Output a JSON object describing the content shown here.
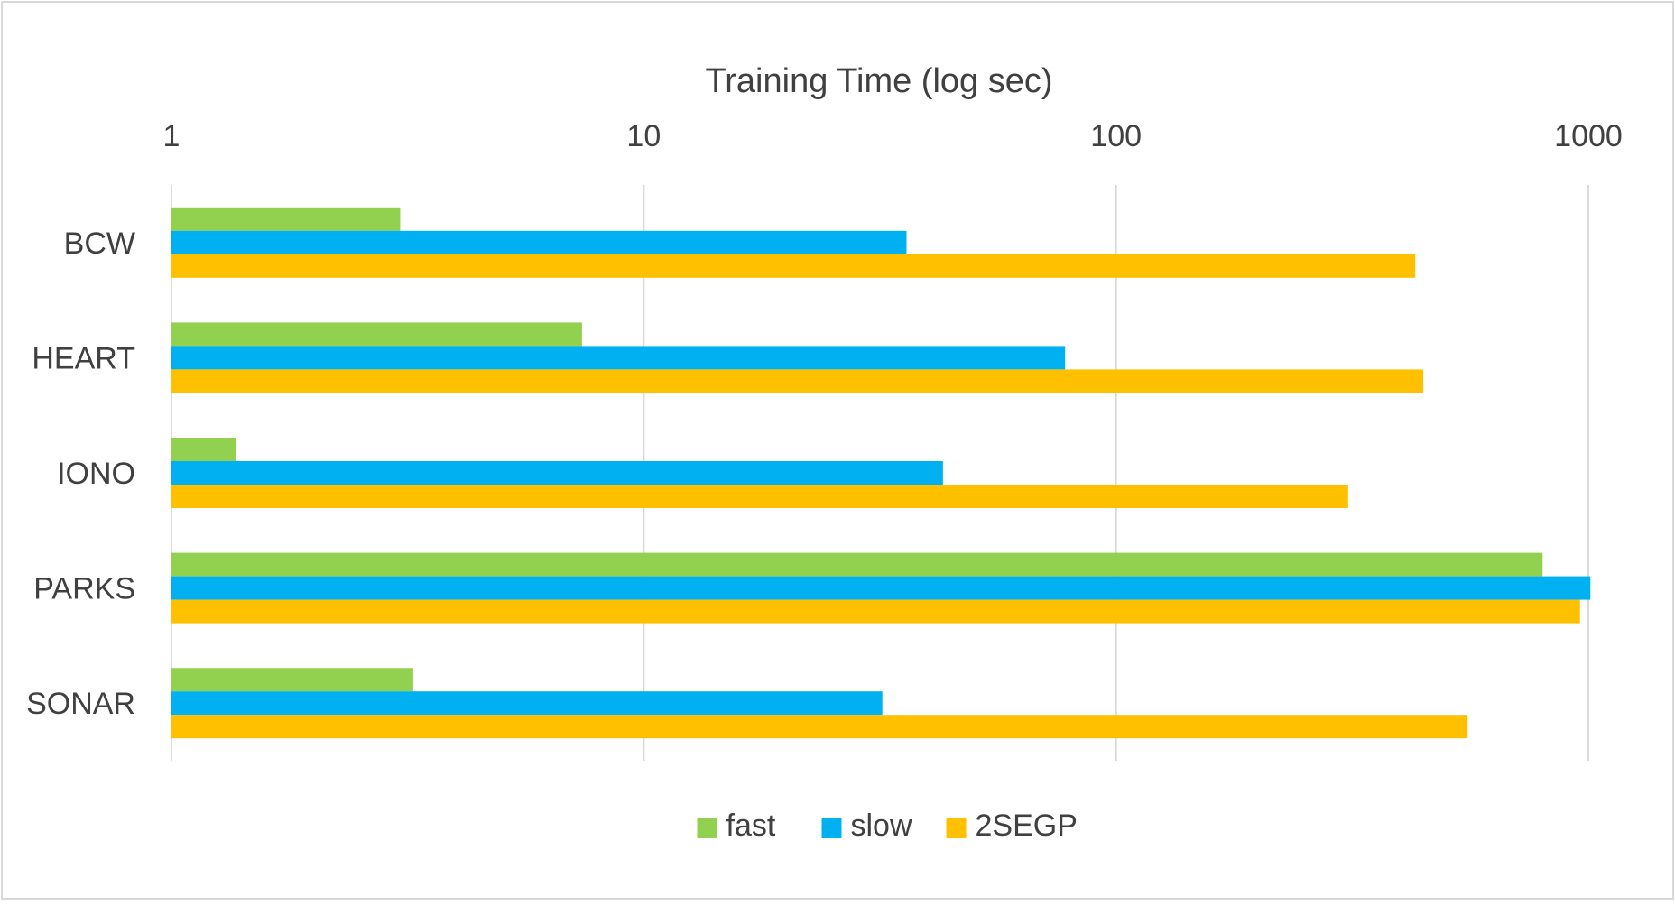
{
  "chart_data": {
    "type": "bar",
    "orientation": "horizontal",
    "title": "Training Time (log sec)",
    "xlabel": "Training Time (log sec)",
    "ylabel": "",
    "xscale": "log",
    "xlim": [
      1,
      1000
    ],
    "x_ticks": [
      1,
      10,
      100,
      1000
    ],
    "x_tick_labels": [
      "1",
      "10",
      "100",
      "1000"
    ],
    "x_axis_position": "top",
    "grid": true,
    "legend_position": "bottom",
    "categories": [
      "BCW",
      "HEART",
      "IONO",
      "PARKS",
      "SONAR"
    ],
    "series": [
      {
        "name": "fast",
        "color": "#92D050",
        "values": [
          3.05,
          7.4,
          1.37,
          800,
          3.25
        ]
      },
      {
        "name": "slow",
        "color": "#00B0F0",
        "values": [
          36,
          78,
          43,
          1010,
          32
        ]
      },
      {
        "name": "2SEGP",
        "color": "#FFC000",
        "values": [
          430,
          447,
          310,
          960,
          555
        ]
      }
    ]
  }
}
